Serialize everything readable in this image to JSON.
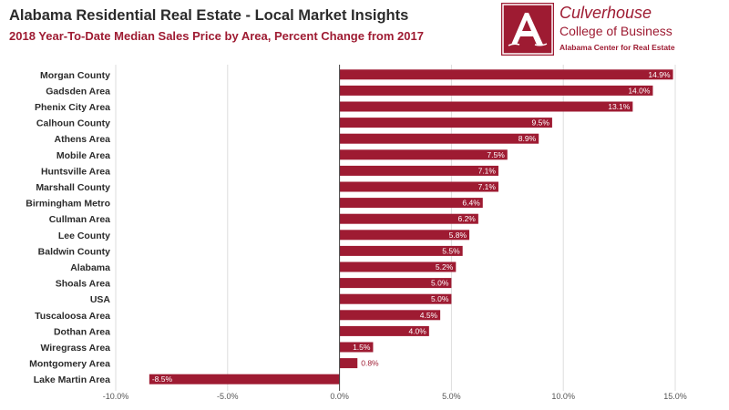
{
  "header": {
    "title": "Alabama Residential Real Estate - Local Market Insights",
    "subtitle": "2018 Year-To-Date Median Sales Price by Area, Percent Change from 2017"
  },
  "logo": {
    "name": "Culverhouse",
    "college": "College of Business",
    "center": "Alabama Center for Real Estate",
    "mark_letter": "A"
  },
  "colors": {
    "bar": "#9e1b32",
    "label_inside": "#ffffff",
    "label_outside": "#9e1b32",
    "grid": "#dddddd",
    "zero_line": "#444444"
  },
  "chart_data": {
    "type": "bar",
    "orientation": "horizontal",
    "title": "2018 Year-To-Date Median Sales Price by Area, Percent Change from 2017",
    "categories": [
      "Morgan County",
      "Gadsden Area",
      "Phenix City Area",
      "Calhoun County",
      "Athens Area",
      "Mobile Area",
      "Huntsville Area",
      "Marshall County",
      "Birmingham Metro",
      "Cullman Area",
      "Lee County",
      "Baldwin County",
      "Alabama",
      "Shoals Area",
      "USA",
      "Tuscaloosa Area",
      "Dothan Area",
      "Wiregrass Area",
      "Montgomery Area",
      "Lake Martin Area"
    ],
    "values": [
      14.9,
      14.0,
      13.1,
      9.5,
      8.9,
      7.5,
      7.1,
      7.1,
      6.4,
      6.2,
      5.8,
      5.5,
      5.2,
      5.0,
      5.0,
      4.5,
      4.0,
      1.5,
      0.8,
      -8.5
    ],
    "value_labels": [
      "14.9%",
      "14.0%",
      "13.1%",
      "9.5%",
      "8.9%",
      "7.5%",
      "7.1%",
      "7.1%",
      "6.4%",
      "6.2%",
      "5.8%",
      "5.5%",
      "5.2%",
      "5.0%",
      "5.0%",
      "4.5%",
      "4.0%",
      "1.5%",
      "0.8%",
      "-8.5%"
    ],
    "xlim": [
      -10,
      15
    ],
    "xticks": [
      -10,
      -5,
      0,
      5,
      10,
      15
    ],
    "xtick_labels": [
      "-10.0%",
      "-5.0%",
      "0.0%",
      "5.0%",
      "10.0%",
      "15.0%"
    ],
    "xlabel": "",
    "ylabel": "",
    "grid": true,
    "legend": false
  }
}
